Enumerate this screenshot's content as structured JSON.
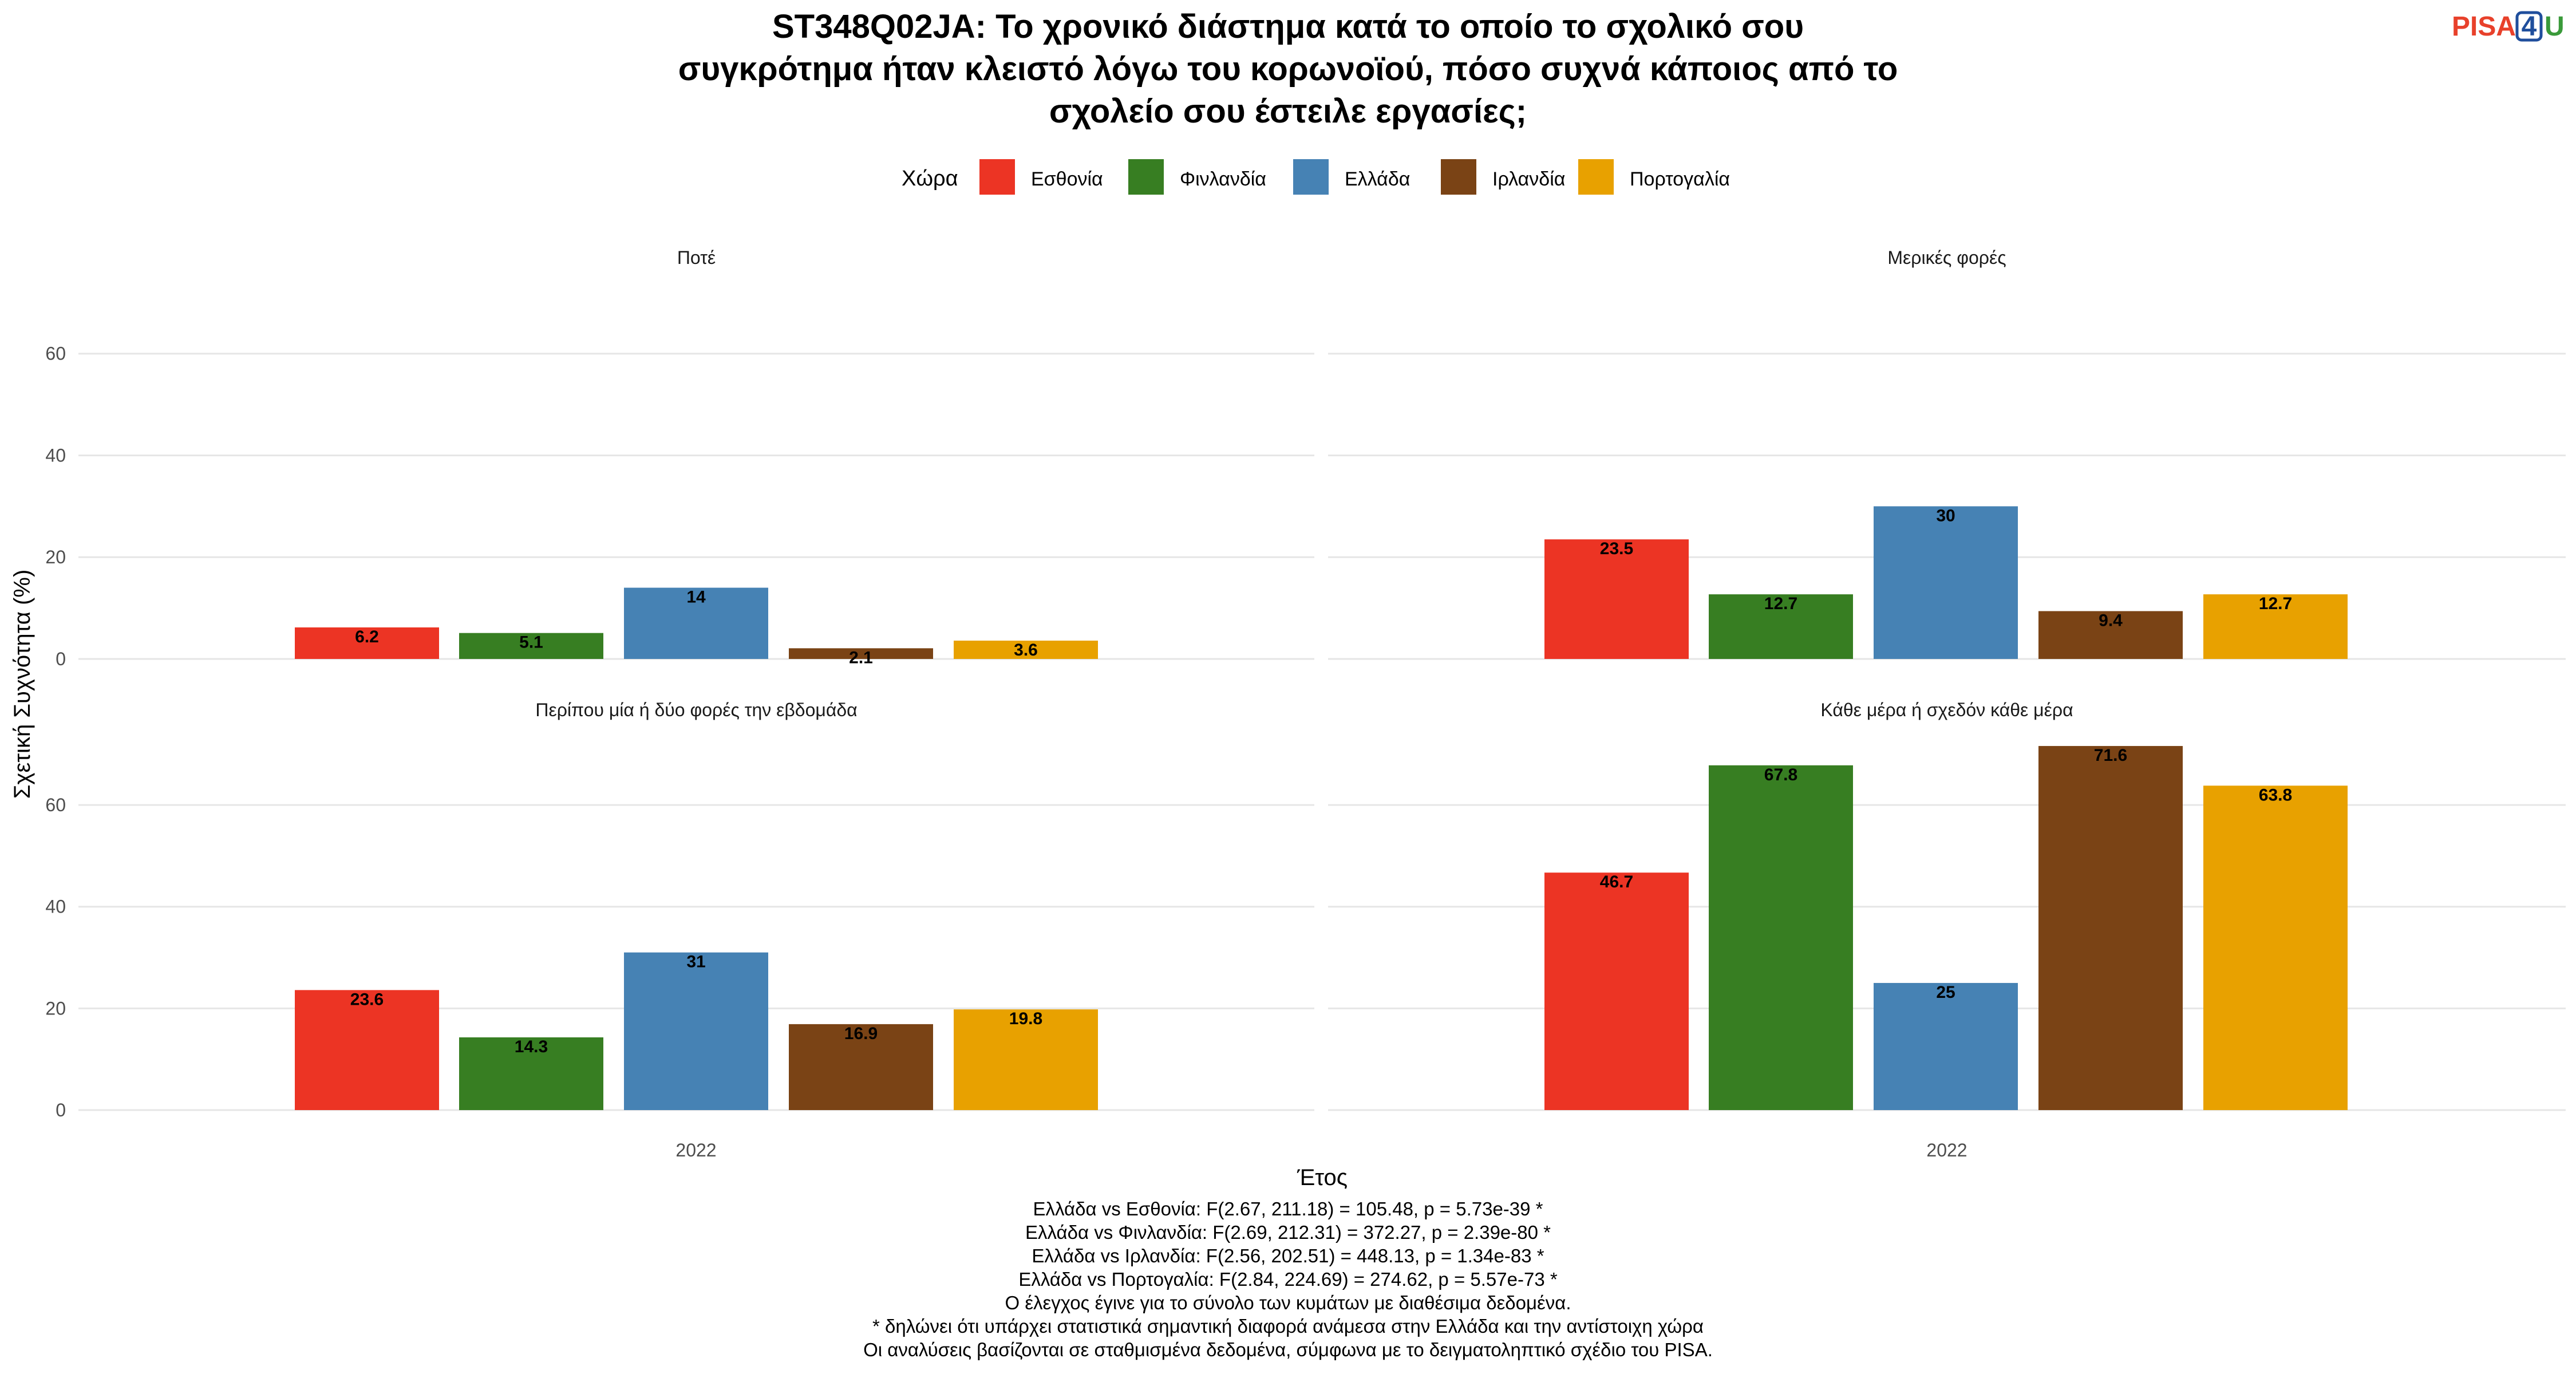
{
  "title_lines": [
    "ST348Q02JA: Το χρονικό διάστημα κατά το οποίο το σχολικό σου",
    "συγκρότημα ήταν κλειστό λόγω του κορωνοϊού, πόσο συχνά κάποιος από το",
    "σχολείο σου έστειλε εργασίες;"
  ],
  "logo": {
    "text": "PISA",
    "badge": "4",
    "suffix": "U",
    "text_color": "#e8412b",
    "badge_color": "#1f4e9c",
    "suffix_color": "#3a9a3a"
  },
  "legend": {
    "title": "Χώρα",
    "items": [
      {
        "label": "Εσθονία",
        "color": "#ec3424"
      },
      {
        "label": "Φινλανδία",
        "color": "#377e22"
      },
      {
        "label": "Ελλάδα",
        "color": "#4682b4"
      },
      {
        "label": "Ιρλανδία",
        "color": "#7a4315"
      },
      {
        "label": "Πορτογαλία",
        "color": "#e8a100"
      }
    ]
  },
  "chart_data": {
    "type": "bar",
    "facets": [
      {
        "title": "Ποτέ",
        "x": "2022",
        "values": [
          6.2,
          5.1,
          14,
          2.1,
          3.6
        ]
      },
      {
        "title": "Μερικές φορές",
        "x": "2022",
        "values": [
          23.5,
          12.7,
          30,
          9.4,
          12.7
        ]
      },
      {
        "title": "Περίπου μία ή δύο φορές την εβδομάδα",
        "x": "2022",
        "values": [
          23.6,
          14.3,
          31,
          16.9,
          19.8
        ]
      },
      {
        "title": "Κάθε μέρα ή σχεδόν κάθε μέρα",
        "x": "2022",
        "values": [
          46.7,
          67.8,
          25,
          71.6,
          63.8
        ]
      }
    ],
    "series": [
      "Εσθονία",
      "Φινλανδία",
      "Ελλάδα",
      "Ιρλανδία",
      "Πορτογαλία"
    ],
    "y_ticks": [
      0,
      20,
      40,
      60
    ],
    "ylim_top_row": [
      0,
      66
    ],
    "ylim_bottom_row": [
      0,
      74
    ],
    "xlabel": "Έτος",
    "ylabel": "Σχετική Συχνότητα (%)",
    "grid": true,
    "legend_position": "top"
  },
  "notes": [
    "Ελλάδα vs Εσθονία: F(2.67, 211.18) = 105.48, p = 5.73e-39 *",
    "Ελλάδα vs Φινλανδία: F(2.69, 212.31) = 372.27, p = 2.39e-80 *",
    "Ελλάδα vs Ιρλανδία: F(2.56, 202.51) = 448.13, p = 1.34e-83 *",
    "Ελλάδα vs Πορτογαλία: F(2.84, 224.69) = 274.62, p = 5.57e-73 *",
    "Ο έλεγχος έγινε για το σύνολο των κυμάτων με διαθέσιμα δεδομένα.",
    "* δηλώνει ότι υπάρχει στατιστικά σημαντική διαφορά ανάμεσα στην Ελλάδα και την αντίστοιχη χώρα",
    "Οι αναλύσεις βασίζονται σε σταθμισμένα δεδομένα, σύμφωνα με το δειγματοληπτικό σχέδιο του PISA."
  ]
}
